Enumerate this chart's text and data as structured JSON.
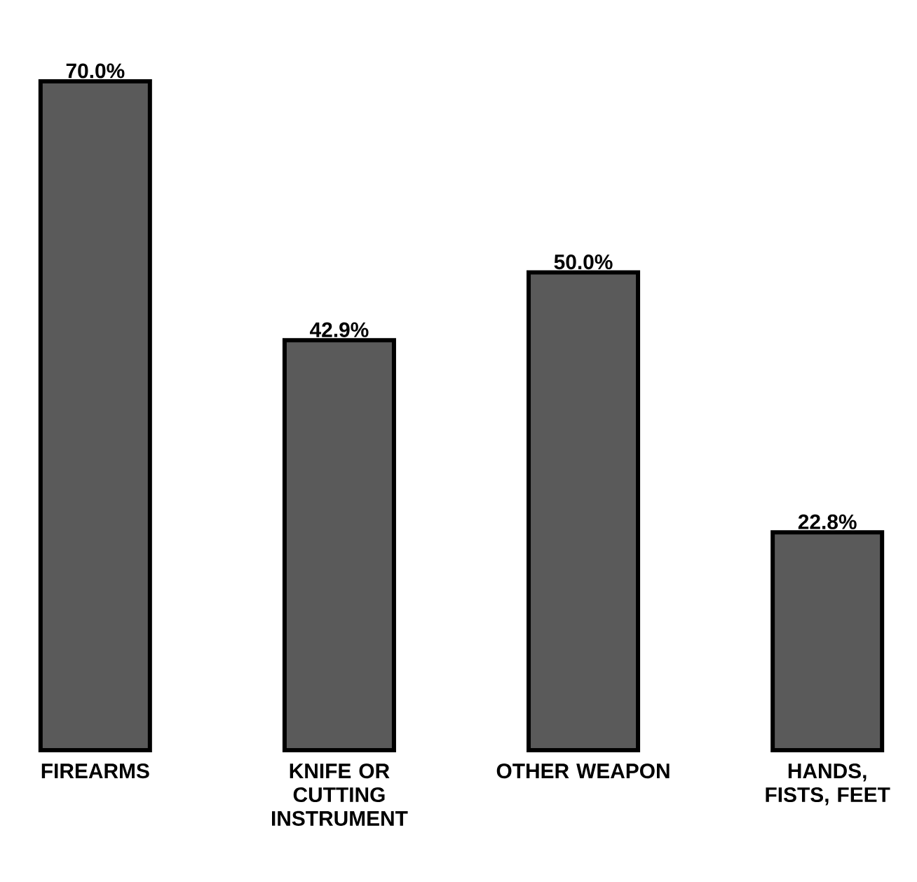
{
  "chart_data": {
    "type": "bar",
    "categories": [
      "FIREARMS",
      "KNIFE OR CUTTING INSTRUMENT",
      "OTHER WEAPON",
      "HANDS, FISTS, FEET"
    ],
    "values": [
      70.0,
      42.9,
      50.0,
      22.8
    ],
    "value_labels": [
      "70.0%",
      "42.9%",
      "50.0%",
      "22.8%"
    ],
    "color": "#5a5a5a"
  }
}
